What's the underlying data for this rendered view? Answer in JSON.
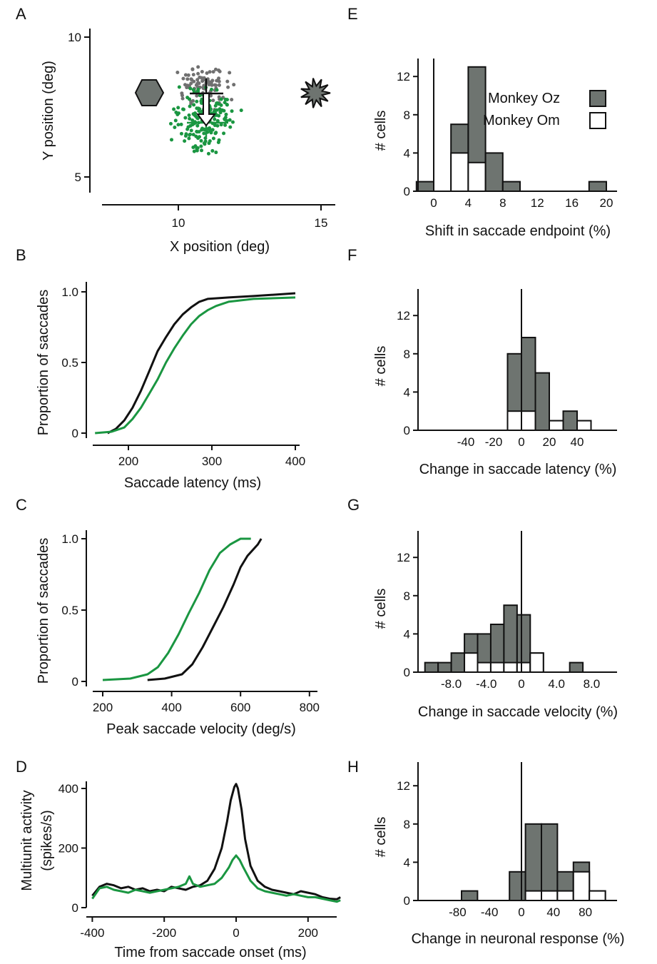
{
  "colors": {
    "green": "#1a9641",
    "black": "#111111",
    "gray": "#6e7470",
    "dotgray": "#707070",
    "hex": "#6e7470"
  },
  "panels": {
    "A": {
      "label": "A",
      "xlabel": "X position (deg)",
      "ylabel": "Y position (deg)",
      "xticks": [
        "10",
        "15"
      ],
      "yticks": [
        "5",
        "10"
      ]
    },
    "B": {
      "label": "B",
      "xlabel": "Saccade latency (ms)",
      "ylabel": "Proportion of saccades",
      "xticks": [
        "200",
        "300",
        "400"
      ],
      "yticks": [
        "0",
        "0.5",
        "1.0"
      ]
    },
    "C": {
      "label": "C",
      "xlabel": "Peak saccade velocity (deg/s)",
      "ylabel": "Proportion of saccades",
      "xticks": [
        "200",
        "400",
        "600",
        "800"
      ],
      "yticks": [
        "0",
        "0.5",
        "1.0"
      ]
    },
    "D": {
      "label": "D",
      "xlabel": "Time from saccade onset (ms)",
      "ylabel1": "Multiunit activity",
      "ylabel2": "(spikes/s)",
      "xticks": [
        "-400",
        "-200",
        "0",
        "200"
      ],
      "yticks": [
        "0",
        "200",
        "400"
      ]
    },
    "E": {
      "label": "E",
      "xlabel": "Shift in saccade endpoint (%)",
      "ylabel": "# cells",
      "xticks": [
        "0",
        "4",
        "8",
        "12",
        "16",
        "20"
      ],
      "yticks": [
        "0",
        "4",
        "8",
        "12"
      ]
    },
    "F": {
      "label": "F",
      "xlabel": "Change in saccade latency (%)",
      "ylabel": "# cells",
      "xticks": [
        "-40",
        "-20",
        "0",
        "20",
        "40"
      ],
      "yticks": [
        "0",
        "4",
        "8",
        "12"
      ]
    },
    "G": {
      "label": "G",
      "xlabel": "Change in saccade velocity (%)",
      "ylabel": "# cells",
      "xticks": [
        "-8.0",
        "-4.0",
        "0",
        "4.0",
        "8.0"
      ],
      "yticks": [
        "0",
        "4",
        "8",
        "12"
      ]
    },
    "H": {
      "label": "H",
      "xlabel": "Change in neuronal response (%)",
      "ylabel": "# cells",
      "xticks": [
        "-80",
        "-40",
        "0",
        "40",
        "80"
      ],
      "yticks": [
        "0",
        "4",
        "8",
        "12"
      ]
    }
  },
  "legend": {
    "oz": "Monkey Oz",
    "om": "Monkey Om"
  },
  "chart_data": [
    {
      "panel": "A",
      "type": "scatter",
      "xlim": [
        7,
        15.5
      ],
      "ylim": [
        4.5,
        10
      ],
      "targets": {
        "hexagon_center": [
          9,
          8
        ],
        "star_center": [
          14.8,
          8
        ]
      },
      "arrow": {
        "from": [
          10.9,
          8
        ],
        "to": [
          10.9,
          7.05
        ]
      },
      "crosses": [
        {
          "center": [
            10.9,
            8
          ],
          "half_width": 0.6,
          "half_height": 0.5
        },
        {
          "center": [
            10.9,
            7.0
          ],
          "half_width": 0.7,
          "half_height": 0.5
        }
      ],
      "gray_cloud": {
        "center": [
          10.9,
          8.2
        ],
        "spread_x": 0.65,
        "spread_y": 0.65,
        "n": 90
      },
      "green_cloud": {
        "center": [
          10.9,
          7.05
        ],
        "spread_x": 0.85,
        "spread_y": 0.9,
        "n": 200
      }
    },
    {
      "panel": "B",
      "type": "line",
      "xlim": [
        160,
        410
      ],
      "ylim": [
        0,
        1
      ],
      "series": [
        {
          "color": "black",
          "x": [
            175,
            185,
            195,
            205,
            215,
            225,
            235,
            245,
            255,
            265,
            275,
            285,
            295,
            320,
            350,
            400
          ],
          "y": [
            0,
            0.03,
            0.09,
            0.18,
            0.3,
            0.44,
            0.58,
            0.68,
            0.77,
            0.84,
            0.89,
            0.93,
            0.95,
            0.96,
            0.97,
            0.99
          ]
        },
        {
          "color": "green",
          "x": [
            160,
            180,
            195,
            205,
            215,
            225,
            235,
            245,
            255,
            265,
            275,
            285,
            295,
            305,
            320,
            350,
            400
          ],
          "y": [
            0,
            0.01,
            0.04,
            0.1,
            0.18,
            0.28,
            0.38,
            0.5,
            0.6,
            0.69,
            0.77,
            0.83,
            0.87,
            0.9,
            0.93,
            0.95,
            0.96
          ]
        }
      ]
    },
    {
      "panel": "C",
      "type": "line",
      "xlim": [
        180,
        830
      ],
      "ylim": [
        0,
        1
      ],
      "series": [
        {
          "color": "green",
          "x": [
            200,
            280,
            330,
            360,
            390,
            420,
            450,
            480,
            510,
            540,
            570,
            600,
            630
          ],
          "y": [
            0.01,
            0.02,
            0.05,
            0.1,
            0.2,
            0.33,
            0.48,
            0.62,
            0.78,
            0.9,
            0.96,
            1.0,
            1.0
          ]
        },
        {
          "color": "black",
          "x": [
            330,
            380,
            430,
            460,
            490,
            520,
            550,
            580,
            600,
            620,
            650,
            660
          ],
          "y": [
            0.01,
            0.02,
            0.05,
            0.12,
            0.24,
            0.38,
            0.52,
            0.68,
            0.8,
            0.88,
            0.96,
            1.0
          ]
        }
      ]
    },
    {
      "panel": "D",
      "type": "line",
      "xlim": [
        -410,
        290
      ],
      "ylim": [
        0,
        430
      ],
      "series": [
        {
          "color": "black",
          "x": [
            -400,
            -380,
            -360,
            -340,
            -320,
            -300,
            -280,
            -260,
            -240,
            -220,
            -200,
            -180,
            -160,
            -140,
            -120,
            -100,
            -80,
            -60,
            -40,
            -25,
            -15,
            -5,
            0,
            5,
            15,
            25,
            40,
            60,
            80,
            100,
            120,
            140,
            160,
            180,
            200,
            220,
            240,
            260,
            280,
            290
          ],
          "y": [
            40,
            70,
            80,
            75,
            65,
            70,
            60,
            65,
            55,
            60,
            55,
            70,
            65,
            60,
            70,
            75,
            90,
            130,
            200,
            290,
            360,
            405,
            415,
            400,
            330,
            230,
            140,
            90,
            70,
            60,
            55,
            50,
            45,
            55,
            50,
            45,
            35,
            30,
            28,
            35
          ]
        },
        {
          "color": "green",
          "x": [
            -400,
            -380,
            -360,
            -340,
            -320,
            -300,
            -280,
            -260,
            -240,
            -220,
            -200,
            -180,
            -160,
            -140,
            -130,
            -120,
            -100,
            -80,
            -60,
            -40,
            -20,
            -10,
            0,
            10,
            20,
            40,
            60,
            80,
            100,
            120,
            140,
            160,
            180,
            200,
            220,
            240,
            260,
            280,
            290
          ],
          "y": [
            30,
            65,
            70,
            60,
            55,
            50,
            60,
            55,
            50,
            55,
            60,
            65,
            70,
            80,
            105,
            80,
            70,
            75,
            80,
            100,
            135,
            160,
            175,
            160,
            135,
            90,
            65,
            55,
            50,
            45,
            40,
            45,
            40,
            35,
            35,
            30,
            25,
            20,
            25
          ]
        }
      ]
    },
    {
      "panel": "E",
      "type": "bar",
      "bin_edges": [
        -2,
        0,
        2,
        4,
        6,
        8,
        10,
        12,
        14,
        16,
        18,
        20
      ],
      "oz_total": [
        1,
        0,
        7,
        13,
        4,
        1,
        0,
        0,
        0,
        0,
        1
      ],
      "om": [
        0,
        0,
        4,
        3,
        0,
        0,
        0,
        0,
        0,
        0,
        0
      ],
      "xlim": [
        -1.5,
        21
      ],
      "ylim": [
        0,
        14
      ],
      "vline": 0
    },
    {
      "panel": "F",
      "type": "bar",
      "bin_edges": [
        -10,
        0,
        10,
        20,
        30,
        40,
        50
      ],
      "oz_total": [
        8,
        9.7,
        6,
        1,
        2,
        1
      ],
      "om": [
        2,
        2,
        0,
        1,
        0,
        1
      ],
      "xlim": [
        -60,
        55
      ],
      "ylim": [
        0,
        14
      ],
      "vline": 0
    },
    {
      "panel": "G",
      "type": "bar",
      "bin_edges": [
        -11,
        -9.5,
        -8,
        -6.5,
        -5,
        -3.5,
        -2,
        -0.5,
        1,
        2.5,
        4,
        5.5,
        7,
        8.5
      ],
      "oz_total": [
        1,
        1,
        2,
        4,
        4,
        5,
        7,
        6,
        2,
        0,
        0,
        1,
        0
      ],
      "om": [
        0,
        0,
        0,
        2,
        1,
        1,
        1,
        1,
        2,
        0,
        0,
        0,
        0
      ],
      "xlim": [
        -11.5,
        9.5
      ],
      "ylim": [
        0,
        14
      ],
      "vline": 0
    },
    {
      "panel": "H",
      "type": "bar",
      "bin_edges": [
        -75,
        -55,
        -35,
        -15,
        5,
        25,
        45,
        65,
        85,
        105
      ],
      "oz_total": [
        1,
        0,
        0,
        3,
        8,
        8,
        3,
        4,
        1
      ],
      "om": [
        0,
        0,
        0,
        0,
        1,
        1,
        1,
        3,
        1
      ],
      "xlim": [
        -115,
        115
      ],
      "ylim": [
        0,
        14.5
      ],
      "vline": 0
    }
  ]
}
